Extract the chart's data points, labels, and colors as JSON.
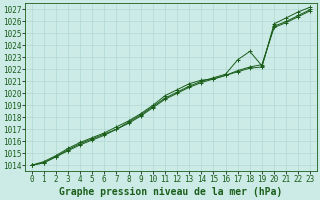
{
  "xlabel": "Graphe pression niveau de la mer (hPa)",
  "ylim": [
    1014,
    1027
  ],
  "xlim": [
    0,
    23
  ],
  "yticks": [
    1014,
    1015,
    1016,
    1017,
    1018,
    1019,
    1020,
    1021,
    1022,
    1023,
    1024,
    1025,
    1026,
    1027
  ],
  "xticks": [
    0,
    1,
    2,
    3,
    4,
    5,
    6,
    7,
    8,
    9,
    10,
    11,
    12,
    13,
    14,
    15,
    16,
    17,
    18,
    19,
    20,
    21,
    22,
    23
  ],
  "bg_color": "#cceae6",
  "grid_color": "#aad4ce",
  "line_color": "#1a5e1a",
  "line1_x": [
    0,
    1,
    2,
    3,
    4,
    5,
    6,
    7,
    8,
    9,
    10,
    11,
    12,
    13,
    14,
    15,
    16,
    17,
    18,
    19,
    20,
    21,
    22,
    23
  ],
  "line1_y": [
    1014.0,
    1014.3,
    1014.8,
    1015.4,
    1015.9,
    1016.3,
    1016.7,
    1017.2,
    1017.7,
    1018.3,
    1019.0,
    1019.8,
    1020.3,
    1020.8,
    1021.1,
    1021.2,
    1021.5,
    1021.8,
    1022.1,
    1022.2,
    1025.8,
    1026.3,
    1026.8,
    1027.2
  ],
  "line2_x": [
    0,
    1,
    2,
    3,
    4,
    5,
    6,
    7,
    8,
    9,
    10,
    11,
    12,
    13,
    14,
    15,
    16,
    17,
    18,
    19,
    20,
    21,
    22,
    23
  ],
  "line2_y": [
    1014.0,
    1014.2,
    1014.7,
    1015.3,
    1015.8,
    1016.2,
    1016.6,
    1017.0,
    1017.6,
    1018.2,
    1018.9,
    1019.6,
    1020.1,
    1020.6,
    1021.0,
    1021.3,
    1021.6,
    1022.8,
    1023.5,
    1022.3,
    1025.6,
    1026.0,
    1026.5,
    1027.0
  ],
  "line3_x": [
    0,
    1,
    2,
    3,
    4,
    5,
    6,
    7,
    8,
    9,
    10,
    11,
    12,
    13,
    14,
    15,
    16,
    17,
    18,
    19,
    20,
    21,
    22,
    23
  ],
  "line3_y": [
    1014.0,
    1014.2,
    1014.7,
    1015.2,
    1015.7,
    1016.1,
    1016.5,
    1017.0,
    1017.5,
    1018.1,
    1018.8,
    1019.5,
    1020.0,
    1020.5,
    1020.9,
    1021.2,
    1021.5,
    1021.9,
    1022.2,
    1022.4,
    1025.5,
    1025.9,
    1026.4,
    1026.9
  ],
  "xlabel_fontsize": 7,
  "tick_fontsize": 5.5,
  "figsize": [
    3.2,
    2.0
  ],
  "dpi": 100
}
